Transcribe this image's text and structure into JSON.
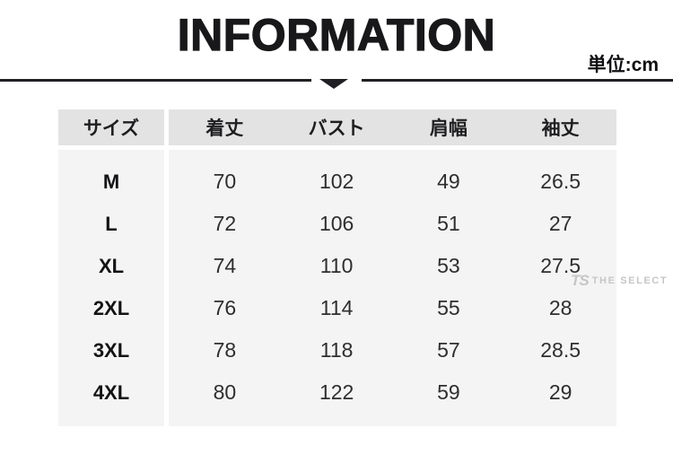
{
  "header": {
    "unit_label": "単位:cm"
  },
  "chart_data": {
    "type": "table",
    "title": "INFORMATION",
    "unit": "cm",
    "columns": [
      "サイズ",
      "着丈",
      "バスト",
      "肩幅",
      "袖丈"
    ],
    "rows": [
      [
        "M",
        70,
        102,
        49,
        26.5
      ],
      [
        "L",
        72,
        106,
        51,
        27
      ],
      [
        "XL",
        74,
        110,
        53,
        27.5
      ],
      [
        "2XL",
        76,
        114,
        55,
        28
      ],
      [
        "3XL",
        78,
        118,
        57,
        28.5
      ],
      [
        "4XL",
        80,
        122,
        59,
        29
      ]
    ]
  },
  "watermark": {
    "logo": "TS",
    "brand": "THE SELECT"
  },
  "colors": {
    "title_text": "#18181a",
    "rule": "#202024",
    "header_row_bg": "#e3e3e3",
    "body_bg": "#f4f4f4",
    "watermark_text": "#c6c6c6"
  }
}
